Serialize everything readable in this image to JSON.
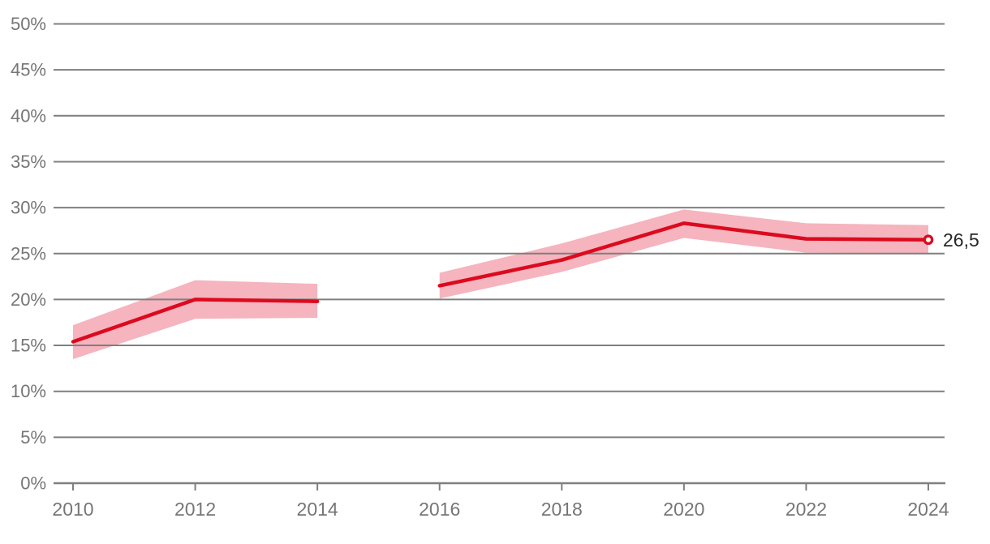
{
  "chart_data": {
    "type": "line",
    "title": "",
    "xlabel": "",
    "ylabel": "",
    "x": [
      2010,
      2012,
      2014,
      2016,
      2018,
      2020,
      2022,
      2024
    ],
    "x_tick_labels": [
      "2010",
      "2012",
      "2014",
      "2016",
      "2018",
      "2020",
      "2022",
      "2024"
    ],
    "y_axis": {
      "min": 0,
      "max": 50,
      "step": 5,
      "tick_labels": [
        "0%",
        "5%",
        "10%",
        "15%",
        "20%",
        "25%",
        "30%",
        "35%",
        "40%",
        "45%",
        "50%"
      ]
    },
    "grid": true,
    "legend": false,
    "series": [
      {
        "name": "value-with-confidence-band",
        "values": [
          15.4,
          20.0,
          19.8,
          21.5,
          24.3,
          28.3,
          26.6,
          26.5
        ],
        "band_lower": [
          13.5,
          17.9,
          18.0,
          20.1,
          23.0,
          26.7,
          25.1,
          25.0
        ],
        "band_upper": [
          17.2,
          22.1,
          21.7,
          22.9,
          26.1,
          29.8,
          28.3,
          28.1
        ],
        "gaps_after_x": [
          2014
        ],
        "end_marker": true,
        "end_label": "26,5"
      }
    ],
    "colors": {
      "line": "#dc0a1e",
      "band": "#f5b4be",
      "grid": "#7f7f7f",
      "axis_text": "#767676",
      "end_label_text": "#262626",
      "marker_fill": "#ffffff",
      "background": "#ffffff"
    }
  }
}
